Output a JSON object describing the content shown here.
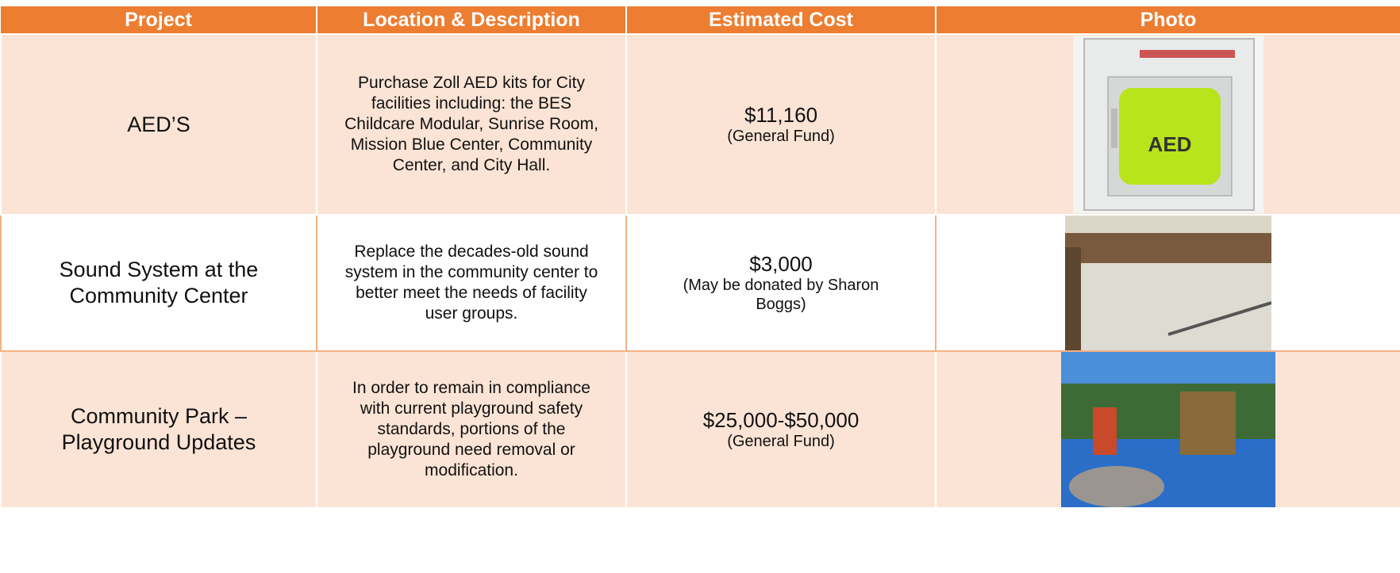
{
  "table": {
    "headers": [
      "Project",
      "Location & Description",
      "Estimated Cost",
      "Photo"
    ],
    "rows": [
      {
        "project": "AED’S",
        "description": "Purchase Zoll AED kits for City facilities including: the BES Childcare Modular, Sunrise Room, Mission Blue Center, Community Center, and City Hall.",
        "cost": "$11,160",
        "cost_note": "(General Fund)"
      },
      {
        "project": "Sound System at the Community Center",
        "description": "Replace the decades-old sound system in the community center to better meet the needs of facility user groups.",
        "cost": "$3,000",
        "cost_note": "(May be donated by Sharon Boggs)"
      },
      {
        "project": "Community Park – Playground Updates",
        "description": "In order to remain in compliance with current playground safety standards, portions of the playground need removal or modification.",
        "cost": "$25,000-$50,000",
        "cost_note": "(General Fund)"
      }
    ]
  }
}
